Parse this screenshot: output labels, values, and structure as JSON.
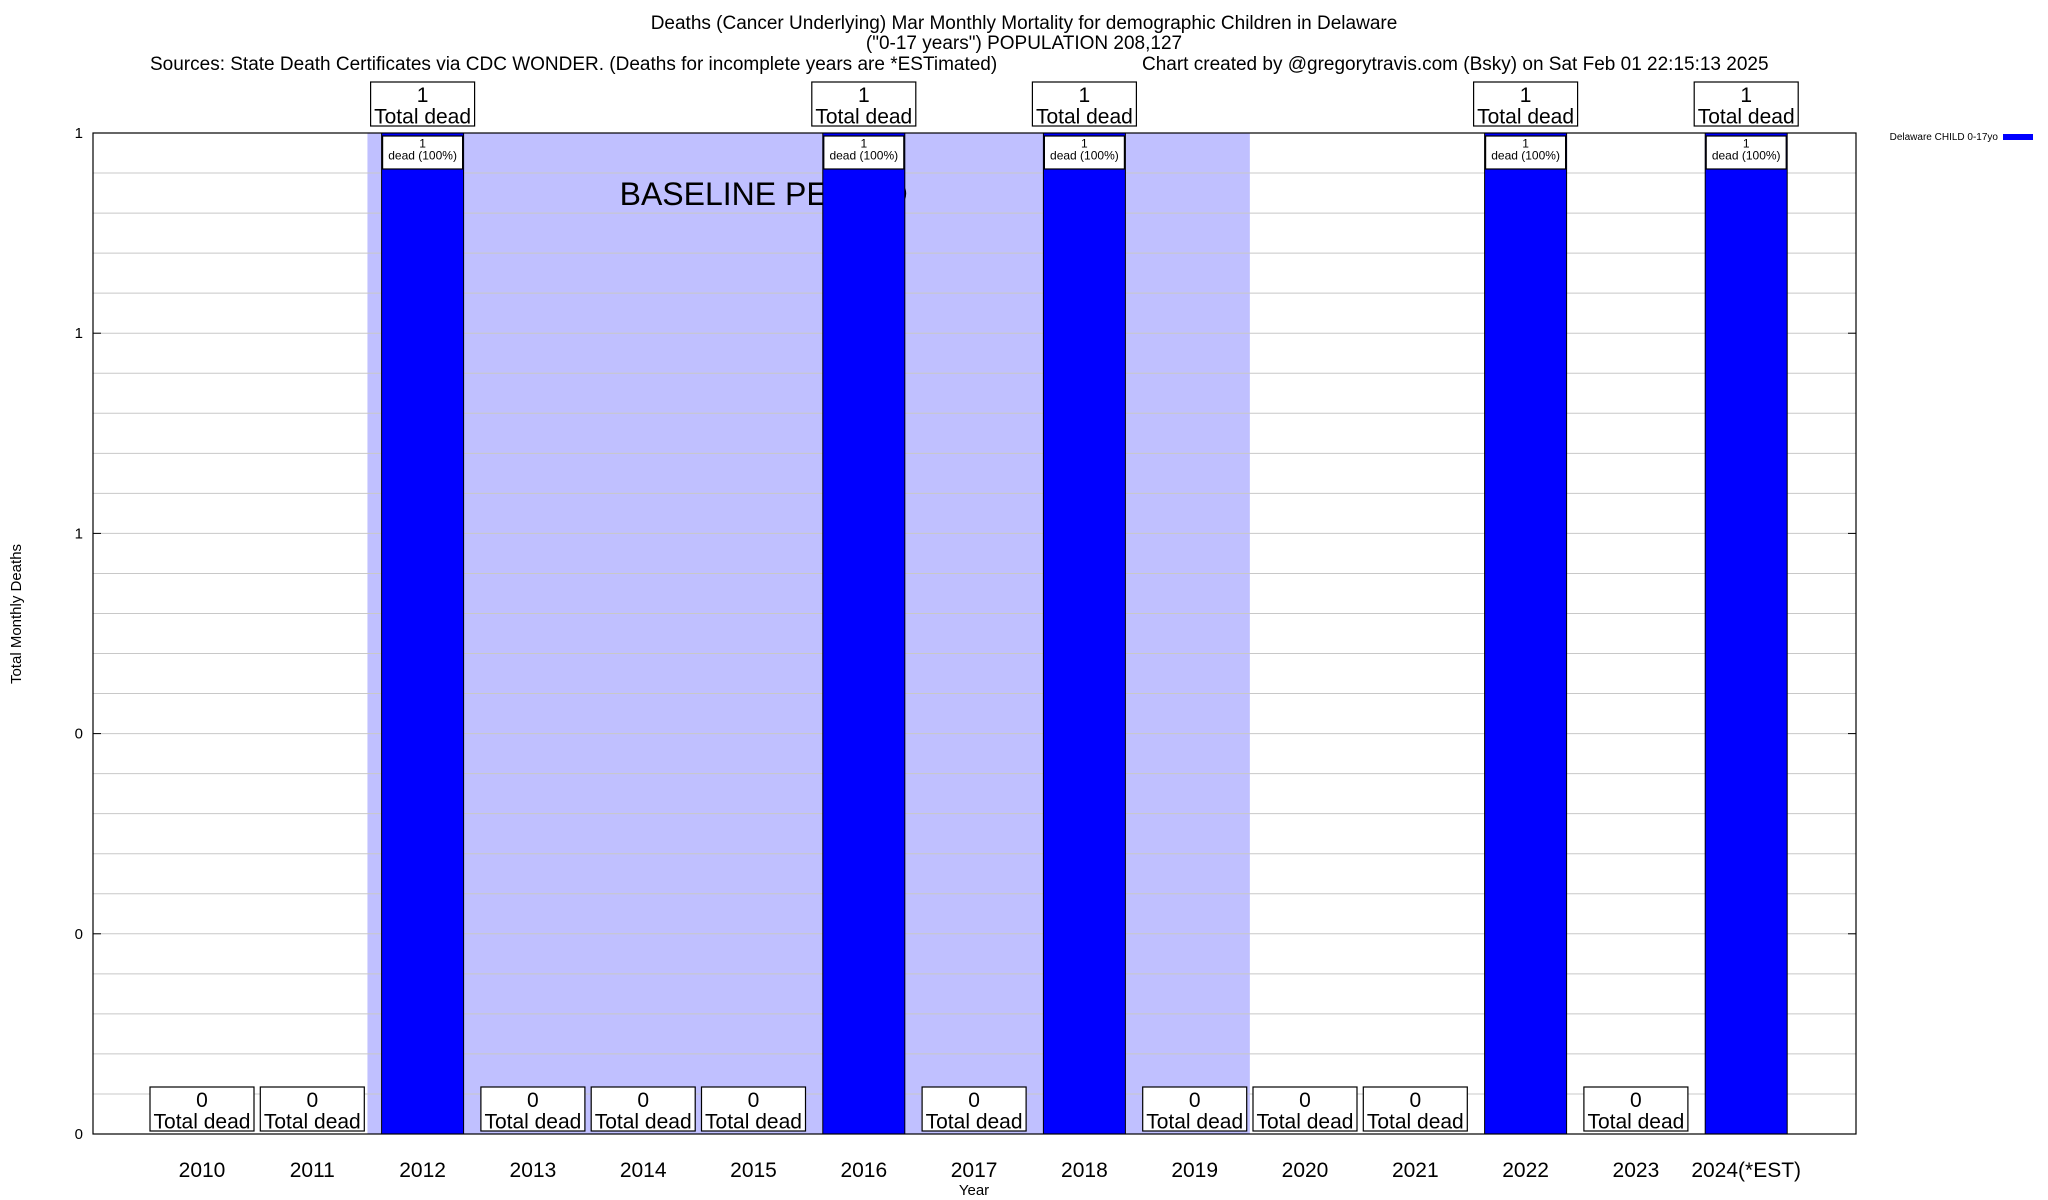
{
  "header": {
    "title_line1": "Deaths (Cancer Underlying) Mar Monthly Mortality for demographic Children in Delaware",
    "title_line2": "(\"0-17 years\") POPULATION 208,127",
    "sources": "Sources: State Death Certificates via CDC WONDER. (Deaths for incomplete years are *ESTimated)",
    "credit": "Chart created by @gregorytravis.com (Bsky) on Sat Feb 01 22:15:13 2025"
  },
  "colors": {
    "bar": "#0000ff",
    "baseline_shade": "#c0c0ff",
    "grid": "#c8c8c8",
    "axis": "#000000"
  },
  "chart_data": {
    "type": "bar",
    "categories": [
      "2010",
      "2011",
      "2012",
      "2013",
      "2014",
      "2015",
      "2016",
      "2017",
      "2018",
      "2019",
      "2020",
      "2021",
      "2022",
      "2023",
      "2024(*EST)"
    ],
    "series": [
      {
        "name": "Delaware CHILD 0-17yo",
        "values": [
          0,
          0,
          1,
          0,
          0,
          0,
          1,
          0,
          1,
          0,
          0,
          0,
          1,
          0,
          1
        ]
      }
    ],
    "xlabel": "Year",
    "ylabel": "Total Monthly Deaths",
    "ylim": [
      0,
      1
    ],
    "y_tick_labels": [
      "0",
      "0",
      "0",
      "1",
      "1",
      "1"
    ],
    "grid": true,
    "legend_position": "top-right",
    "baseline_period": {
      "label": "BASELINE PERIOD",
      "from": "2012",
      "to": "2019"
    },
    "total_label_suffix": "Total dead",
    "bar_inner_label_suffix": "dead (100%)"
  }
}
